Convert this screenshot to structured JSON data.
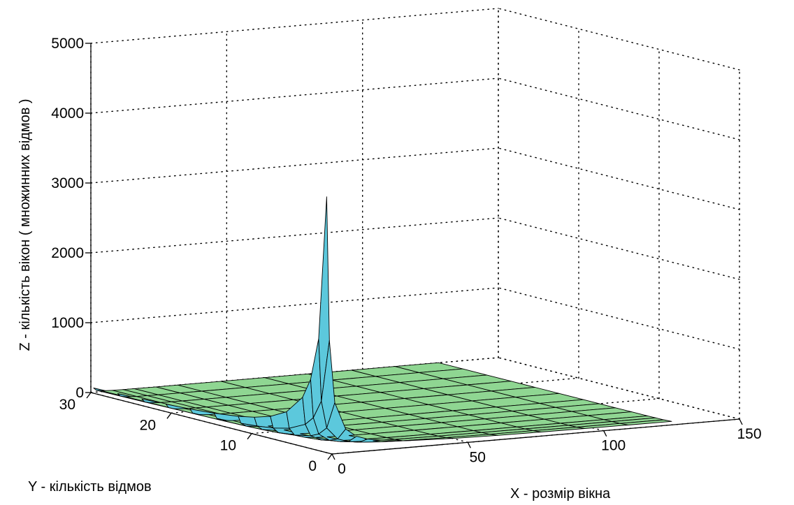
{
  "chart_data": {
    "type": "surface3d",
    "title": "",
    "xlabel": "X - розмір вікна",
    "ylabel": "Y - кількість відмов",
    "zlabel": "Z - кількість вікон ( множинних відмов )",
    "xlim": [
      0,
      150
    ],
    "ylim": [
      0,
      30
    ],
    "zlim": [
      0,
      5000
    ],
    "x_ticks": [
      "0",
      "50",
      "100",
      "150"
    ],
    "y_ticks": [
      "0",
      "10",
      "20",
      "30"
    ],
    "z_ticks": [
      "0",
      "1000",
      "2000",
      "3000",
      "4000",
      "5000"
    ],
    "grid": true,
    "colors": {
      "peak_surface": "#5cc8dc",
      "flat_surface": "#8fd692",
      "mesh_edges": "#000000"
    },
    "surface": {
      "x": [
        1,
        2,
        4,
        8,
        12,
        16,
        24,
        32,
        48,
        64,
        80,
        96,
        112,
        128
      ],
      "y": [
        1,
        2,
        3,
        4,
        6,
        8,
        10,
        12,
        15,
        18,
        21,
        24,
        27,
        30
      ],
      "peak_value": 3650,
      "description_of_shape": "z peaks near x≈1,y≈1 at about 3650 and decays toward 0 as x and y grow"
    }
  }
}
